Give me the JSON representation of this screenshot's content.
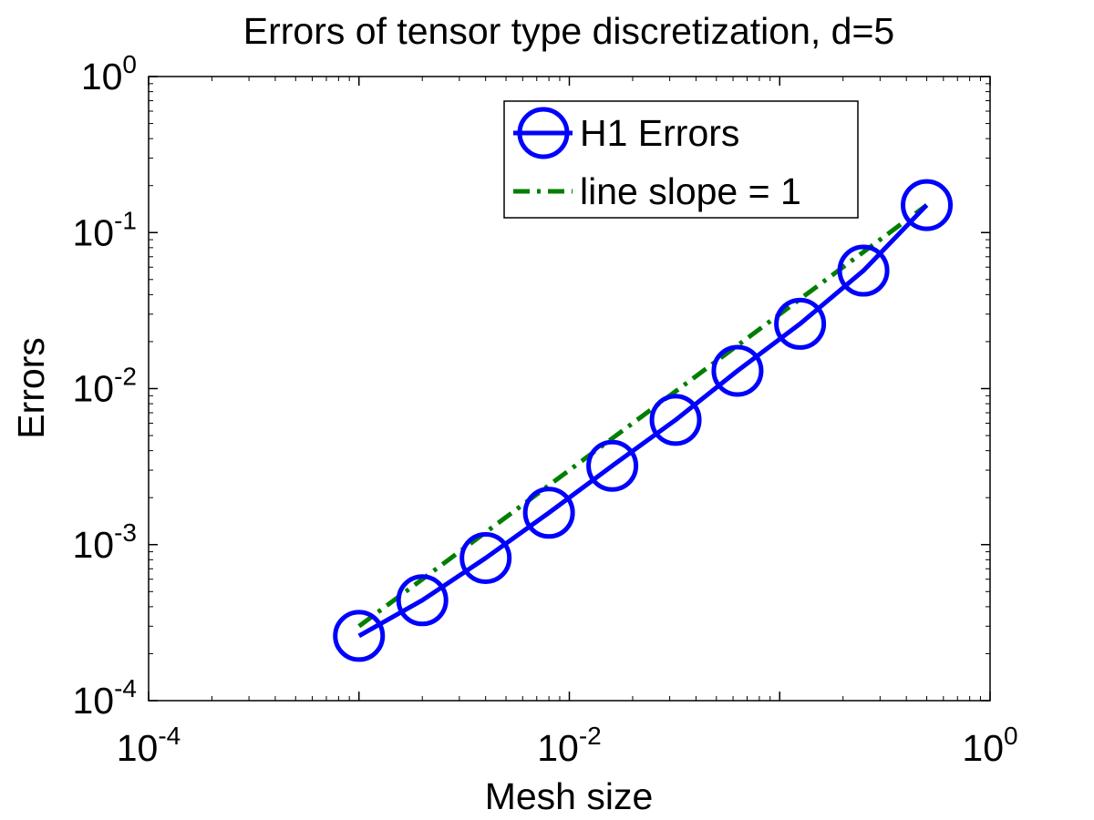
{
  "chart_data": {
    "type": "line",
    "title": "Errors of tensor type discretization, d=5",
    "xlabel": "Mesh size",
    "ylabel": "Errors",
    "xscale": "log",
    "yscale": "log",
    "xlim": [
      0.0001,
      1
    ],
    "ylim": [
      0.0001,
      1
    ],
    "grid": false,
    "legend_position": "top-right",
    "x_ticks": [
      {
        "value": 0.0001,
        "base": "10",
        "exp": "-4"
      },
      {
        "value": 0.01,
        "base": "10",
        "exp": "-2"
      },
      {
        "value": 1,
        "base": "10",
        "exp": "0"
      }
    ],
    "y_ticks": [
      {
        "value": 0.0001,
        "base": "10",
        "exp": "-4"
      },
      {
        "value": 0.001,
        "base": "10",
        "exp": "-3"
      },
      {
        "value": 0.01,
        "base": "10",
        "exp": "-2"
      },
      {
        "value": 0.1,
        "base": "10",
        "exp": "-1"
      },
      {
        "value": 1,
        "base": "10",
        "exp": "0"
      }
    ],
    "series": [
      {
        "name": "H1 Errors",
        "color": "#0000ff",
        "line_style": "solid",
        "marker": "circle",
        "x": [
          0.001,
          0.002,
          0.004,
          0.008,
          0.016,
          0.032,
          0.063,
          0.125,
          0.25,
          0.5
        ],
        "y": [
          0.00026,
          0.00044,
          0.00082,
          0.0016,
          0.0032,
          0.0063,
          0.013,
          0.026,
          0.057,
          0.15
        ]
      },
      {
        "name": "line slope = 1",
        "color": "#007f00",
        "line_style": "dashdot",
        "marker": "none",
        "x": [
          0.001,
          0.5
        ],
        "y": [
          0.0003,
          0.15
        ]
      }
    ]
  }
}
